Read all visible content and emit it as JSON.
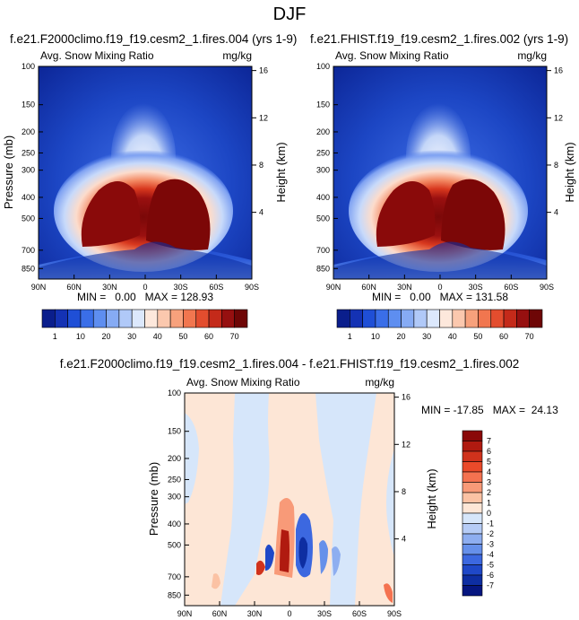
{
  "figure": {
    "title": "DJF"
  },
  "chart_data": [
    {
      "type": "heatmap",
      "title": "f.e21.F2000climo.f19_f19.cesm2_1.fires.004 (yrs 1-9)",
      "subtitle_left": "Avg. Snow Mixing Ratio",
      "subtitle_right": "mg/kg",
      "ylabel": "Pressure (mb)",
      "ylabel_right": "Height (km)",
      "x_ticks": [
        "90N",
        "60N",
        "30N",
        "0",
        "30S",
        "60S",
        "90S"
      ],
      "x_values": [
        90,
        60,
        30,
        0,
        -30,
        -60,
        -90
      ],
      "y_ticks": [
        "100",
        "150",
        "200",
        "250",
        "300",
        "400",
        "500",
        "700",
        "850"
      ],
      "y_values": [
        100,
        150,
        200,
        250,
        300,
        400,
        500,
        700,
        850
      ],
      "y_right_ticks": [
        "16",
        "12",
        "8",
        "4"
      ],
      "y_right_values": [
        16,
        12,
        8,
        4
      ],
      "stats_text": "MIN =   0.00   MAX = 128.93",
      "min": 0.0,
      "max": 128.93
    },
    {
      "type": "heatmap",
      "title": "f.e21.FHIST.f19_f19.cesm2_1.fires.002 (yrs 1-9)",
      "subtitle_left": "Avg. Snow Mixing Ratio",
      "subtitle_right": "mg/kg",
      "ylabel": "",
      "ylabel_right": "Height (km)",
      "x_ticks": [
        "90N",
        "60N",
        "30N",
        "0",
        "30S",
        "60S",
        "90S"
      ],
      "x_values": [
        90,
        60,
        30,
        0,
        -30,
        -60,
        -90
      ],
      "y_ticks": [
        "100",
        "150",
        "200",
        "250",
        "300",
        "400",
        "500",
        "700",
        "850"
      ],
      "y_values": [
        100,
        150,
        200,
        250,
        300,
        400,
        500,
        700,
        850
      ],
      "y_right_ticks": [
        "16",
        "12",
        "8",
        "4"
      ],
      "y_right_values": [
        16,
        12,
        8,
        4
      ],
      "stats_text": "MIN =   0.00   MAX = 131.58",
      "min": 0.0,
      "max": 131.58
    },
    {
      "type": "heatmap",
      "title": "f.e21.F2000climo.f19_f19.cesm2_1.fires.004 - f.e21.FHIST.f19_f19.cesm2_1.fires.002",
      "subtitle_left": "Avg. Snow Mixing Ratio",
      "subtitle_right": "mg/kg",
      "ylabel": "Pressure (mb)",
      "ylabel_right": "Height (km)",
      "x_ticks": [
        "90N",
        "60N",
        "30N",
        "0",
        "30S",
        "60S",
        "90S"
      ],
      "x_values": [
        90,
        60,
        30,
        0,
        -30,
        -60,
        -90
      ],
      "y_ticks": [
        "100",
        "150",
        "200",
        "250",
        "300",
        "400",
        "500",
        "700",
        "850"
      ],
      "y_values": [
        100,
        150,
        200,
        250,
        300,
        400,
        500,
        700,
        850
      ],
      "y_right_ticks": [
        "16",
        "12",
        "8",
        "4"
      ],
      "y_right_values": [
        16,
        12,
        8,
        4
      ],
      "stats_text": "MIN = -17.85   MAX =  24.13",
      "min": -17.85,
      "max": 24.13
    }
  ],
  "colorbars": {
    "abs": {
      "labels": [
        "1",
        "10",
        "20",
        "30",
        "40",
        "50",
        "60",
        "70"
      ],
      "colors": [
        "#0a1e8c",
        "#1432b4",
        "#1f4fd6",
        "#3a6ee8",
        "#5e8ef0",
        "#86abf4",
        "#b0c9f8",
        "#dce8fc",
        "#fde8dc",
        "#fbc8ae",
        "#f7a17c",
        "#f1764f",
        "#e34d2e",
        "#c42a1a",
        "#961010",
        "#6e0606"
      ]
    },
    "diff": {
      "labels": [
        "7",
        "6",
        "5",
        "4",
        "3",
        "2",
        "1",
        "0",
        "-1",
        "-2",
        "-3",
        "-4",
        "-5",
        "-6",
        "-7"
      ],
      "colors": [
        "#8a0808",
        "#b01a10",
        "#d0321c",
        "#ea4a2a",
        "#f47250",
        "#f89a78",
        "#fbc2a4",
        "#fde6d6",
        "#d6e6fa",
        "#b6ccf6",
        "#8eaef0",
        "#6690ea",
        "#3c68e0",
        "#1f48c8",
        "#0e2ea2",
        "#061680"
      ]
    }
  }
}
